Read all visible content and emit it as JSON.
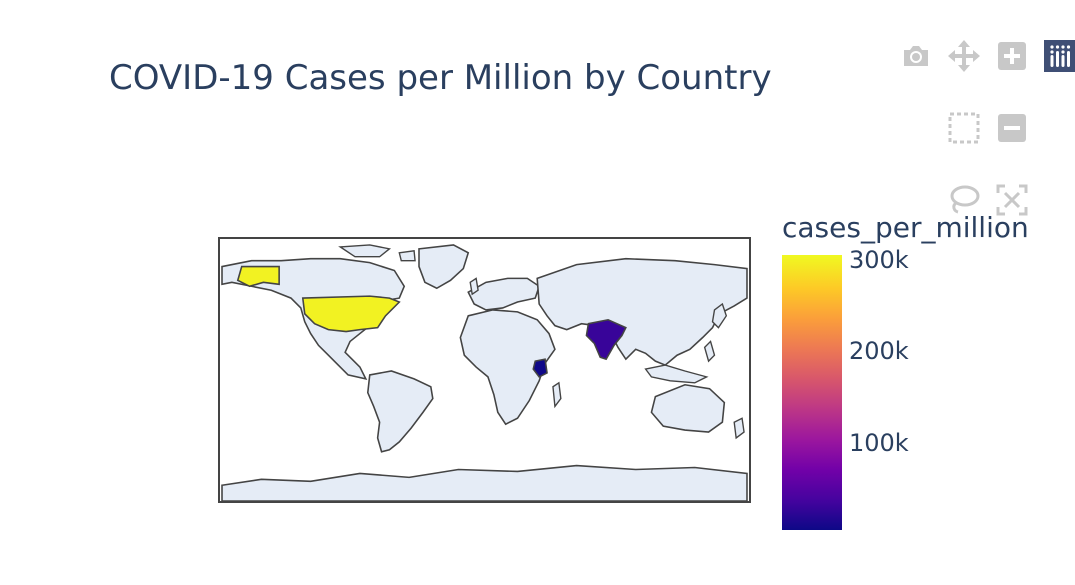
{
  "title": "COVID-19 Cases per Million by Country",
  "modebar": {
    "buttons": [
      {
        "name": "camera-icon",
        "label": "Download plot as a png"
      },
      {
        "name": "pan-icon",
        "label": "Pan"
      },
      {
        "name": "zoom-in-icon",
        "label": "Zoom in"
      },
      {
        "name": "plotly-logo-icon",
        "label": "Produced with Plotly"
      },
      {
        "name": "box-select-icon",
        "label": "Box Select"
      },
      {
        "name": "zoom-out-icon",
        "label": "Zoom out"
      },
      {
        "name": "lasso-select-icon",
        "label": "Lasso Select"
      },
      {
        "name": "reset-icon",
        "label": "Reset view"
      }
    ]
  },
  "colors": {
    "land": "#e5ecf6",
    "coastline": "#444444",
    "text": "#2a3f5f",
    "modebar_icon": "#c8c8c8",
    "plotly_logo_bg": "#3f4f75"
  },
  "chart_data": {
    "type": "choropleth",
    "title": "COVID-19 Cases per Million by Country",
    "colorscale": "Plasma",
    "colorbar": {
      "title": "cases_per_million",
      "ticks": [
        {
          "value": 300000,
          "label": "300k"
        },
        {
          "value": 200000,
          "label": "200k"
        },
        {
          "value": 100000,
          "label": "100k"
        }
      ],
      "range": [
        5000,
        305000
      ]
    },
    "locations": [
      {
        "country": "United States",
        "cases_per_million": 300000
      },
      {
        "country": "India",
        "cases_per_million": 30000
      },
      {
        "country": "Kenya",
        "cases_per_million": 6000
      }
    ],
    "projection": "equirectangular"
  }
}
